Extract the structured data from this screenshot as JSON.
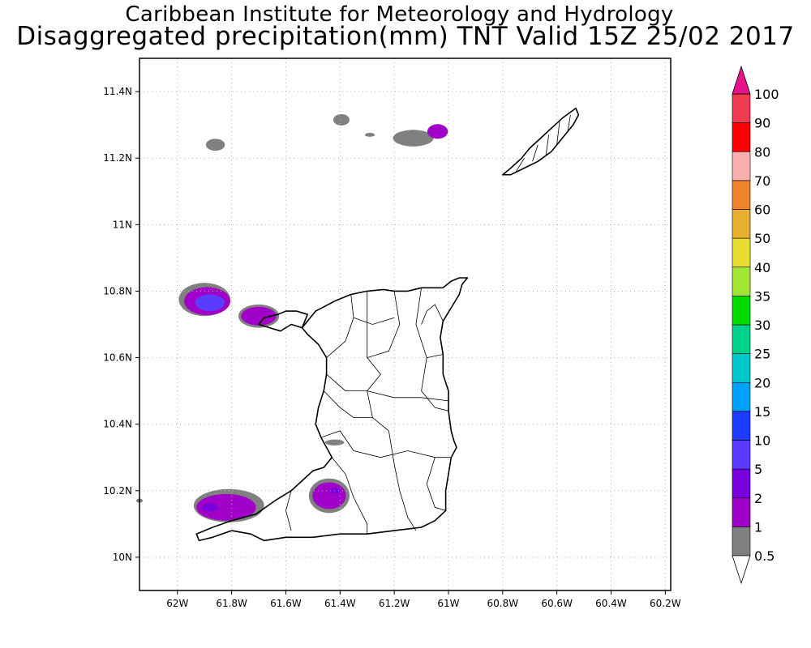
{
  "title": {
    "line1": "Caribbean Institute for Meteorology and Hydrology",
    "line2": "Disaggregated precipitation(mm) TNT Valid 15Z 25/02 2017"
  },
  "axes": {
    "x_ticks": [
      {
        "value": -62.0,
        "label": "62W"
      },
      {
        "value": -61.8,
        "label": "61.8W"
      },
      {
        "value": -61.6,
        "label": "61.6W"
      },
      {
        "value": -61.4,
        "label": "61.4W"
      },
      {
        "value": -61.2,
        "label": "61.2W"
      },
      {
        "value": -61.0,
        "label": "61W"
      },
      {
        "value": -60.8,
        "label": "60.8W"
      },
      {
        "value": -60.6,
        "label": "60.6W"
      },
      {
        "value": -60.4,
        "label": "60.4W"
      },
      {
        "value": -60.2,
        "label": "60.2W"
      }
    ],
    "y_ticks": [
      {
        "value": 10.0,
        "label": "10N"
      },
      {
        "value": 10.2,
        "label": "10.2N"
      },
      {
        "value": 10.4,
        "label": "10.4N"
      },
      {
        "value": 10.6,
        "label": "10.6N"
      },
      {
        "value": 10.8,
        "label": "10.8N"
      },
      {
        "value": 11.0,
        "label": "11N"
      },
      {
        "value": 11.2,
        "label": "11.2N"
      },
      {
        "value": 11.4,
        "label": "11.4N"
      }
    ],
    "lon_range": [
      -62.14,
      -60.18
    ],
    "lat_range": [
      9.9,
      11.5
    ],
    "grid": true
  },
  "colorbar": {
    "orientation": "vertical",
    "levels": [
      {
        "label": "0.5",
        "color": "#ffffff"
      },
      {
        "label": "1",
        "color": "#808080"
      },
      {
        "label": "2",
        "color": "#a000c8"
      },
      {
        "label": "5",
        "color": "#7800dc"
      },
      {
        "label": "10",
        "color": "#5a3cff"
      },
      {
        "label": "15",
        "color": "#1e3cff"
      },
      {
        "label": "20",
        "color": "#00a0ff"
      },
      {
        "label": "25",
        "color": "#00c8c8"
      },
      {
        "label": "30",
        "color": "#00d28c"
      },
      {
        "label": "35",
        "color": "#00dc00"
      },
      {
        "label": "40",
        "color": "#a0e632"
      },
      {
        "label": "50",
        "color": "#e6dc32"
      },
      {
        "label": "60",
        "color": "#e6af2d"
      },
      {
        "label": "70",
        "color": "#f08228"
      },
      {
        "label": "80",
        "color": "#faafaf"
      },
      {
        "label": "90",
        "color": "#fa0000"
      },
      {
        "label": "100",
        "color": "#f03c50"
      }
    ],
    "top_arrow_color": "#e6148c"
  },
  "precip_areas": [
    {
      "lon": -61.86,
      "lat": 11.24,
      "rx": 0.035,
      "ry": 0.018,
      "level": "1"
    },
    {
      "lon": -61.395,
      "lat": 11.315,
      "rx": 0.03,
      "ry": 0.017,
      "level": "1"
    },
    {
      "lon": -61.29,
      "lat": 11.27,
      "rx": 0.018,
      "ry": 0.006,
      "level": "1"
    },
    {
      "lon": -61.13,
      "lat": 11.26,
      "rx": 0.075,
      "ry": 0.025,
      "level": "1"
    },
    {
      "lon": -61.04,
      "lat": 11.28,
      "rx": 0.038,
      "ry": 0.022,
      "level": "2"
    },
    {
      "lon": -61.9,
      "lat": 10.775,
      "rx": 0.095,
      "ry": 0.05,
      "level": "1"
    },
    {
      "lon": -61.89,
      "lat": 10.77,
      "rx": 0.085,
      "ry": 0.042,
      "level": "2"
    },
    {
      "lon": -61.88,
      "lat": 10.765,
      "rx": 0.055,
      "ry": 0.025,
      "level": "10"
    },
    {
      "lon": -61.7,
      "lat": 10.725,
      "rx": 0.075,
      "ry": 0.035,
      "level": "1"
    },
    {
      "lon": -61.7,
      "lat": 10.725,
      "rx": 0.065,
      "ry": 0.028,
      "level": "2"
    },
    {
      "lon": -61.81,
      "lat": 10.155,
      "rx": 0.13,
      "ry": 0.05,
      "level": "1"
    },
    {
      "lon": -61.82,
      "lat": 10.15,
      "rx": 0.11,
      "ry": 0.04,
      "level": "2"
    },
    {
      "lon": -61.88,
      "lat": 10.15,
      "rx": 0.03,
      "ry": 0.012,
      "level": "5"
    },
    {
      "lon": -61.44,
      "lat": 10.185,
      "rx": 0.075,
      "ry": 0.052,
      "level": "1"
    },
    {
      "lon": -61.44,
      "lat": 10.185,
      "rx": 0.062,
      "ry": 0.04,
      "level": "2"
    },
    {
      "lon": -61.42,
      "lat": 10.2,
      "rx": 0.022,
      "ry": 0.008,
      "level": "5"
    },
    {
      "lon": -61.42,
      "lat": 10.345,
      "rx": 0.035,
      "ry": 0.009,
      "level": "1"
    },
    {
      "lon": -62.14,
      "lat": 10.17,
      "rx": 0.012,
      "ry": 0.006,
      "level": "1"
    }
  ],
  "land": {
    "trinidad": [
      [
        -61.54,
        10.69
      ],
      [
        -61.49,
        10.74
      ],
      [
        -61.42,
        10.77
      ],
      [
        -61.36,
        10.79
      ],
      [
        -61.3,
        10.8
      ],
      [
        -61.24,
        10.805
      ],
      [
        -61.2,
        10.8
      ],
      [
        -61.15,
        10.8
      ],
      [
        -61.1,
        10.81
      ],
      [
        -61.02,
        10.81
      ],
      [
        -60.99,
        10.83
      ],
      [
        -60.96,
        10.84
      ],
      [
        -60.93,
        10.84
      ],
      [
        -60.95,
        10.82
      ],
      [
        -60.96,
        10.79
      ],
      [
        -60.99,
        10.75
      ],
      [
        -61.02,
        10.71
      ],
      [
        -61.03,
        10.66
      ],
      [
        -61.02,
        10.61
      ],
      [
        -61.02,
        10.55
      ],
      [
        -61.0,
        10.5
      ],
      [
        -61.0,
        10.44
      ],
      [
        -60.99,
        10.38
      ],
      [
        -60.98,
        10.35
      ],
      [
        -60.97,
        10.33
      ],
      [
        -60.99,
        10.3
      ],
      [
        -61.0,
        10.25
      ],
      [
        -61.01,
        10.2
      ],
      [
        -61.01,
        10.14
      ],
      [
        -61.05,
        10.11
      ],
      [
        -61.1,
        10.09
      ],
      [
        -61.2,
        10.08
      ],
      [
        -61.3,
        10.07
      ],
      [
        -61.4,
        10.07
      ],
      [
        -61.5,
        10.06
      ],
      [
        -61.6,
        10.06
      ],
      [
        -61.68,
        10.05
      ],
      [
        -61.73,
        10.07
      ],
      [
        -61.8,
        10.08
      ],
      [
        -61.87,
        10.06
      ],
      [
        -61.92,
        10.05
      ],
      [
        -61.93,
        10.07
      ],
      [
        -61.87,
        10.09
      ],
      [
        -61.8,
        10.11
      ],
      [
        -61.71,
        10.13
      ],
      [
        -61.64,
        10.17
      ],
      [
        -61.58,
        10.2
      ],
      [
        -61.54,
        10.23
      ],
      [
        -61.5,
        10.26
      ],
      [
        -61.46,
        10.27
      ],
      [
        -61.43,
        10.3
      ],
      [
        -61.45,
        10.33
      ],
      [
        -61.47,
        10.36
      ],
      [
        -61.49,
        10.4
      ],
      [
        -61.48,
        10.45
      ],
      [
        -61.46,
        10.5
      ],
      [
        -61.45,
        10.55
      ],
      [
        -61.45,
        10.6
      ],
      [
        -61.48,
        10.64
      ],
      [
        -61.52,
        10.67
      ]
    ],
    "nw_peninsula": [
      [
        -61.54,
        10.69
      ],
      [
        -61.58,
        10.7
      ],
      [
        -61.62,
        10.68
      ],
      [
        -61.66,
        10.69
      ],
      [
        -61.7,
        10.7
      ],
      [
        -61.68,
        10.72
      ],
      [
        -61.63,
        10.73
      ],
      [
        -61.6,
        10.74
      ],
      [
        -61.56,
        10.74
      ],
      [
        -61.52,
        10.73
      ]
    ],
    "tobago": [
      [
        -60.8,
        11.15
      ],
      [
        -60.77,
        11.17
      ],
      [
        -60.73,
        11.2
      ],
      [
        -60.7,
        11.23
      ],
      [
        -60.66,
        11.26
      ],
      [
        -60.62,
        11.29
      ],
      [
        -60.58,
        11.32
      ],
      [
        -60.53,
        11.35
      ],
      [
        -60.52,
        11.33
      ],
      [
        -60.54,
        11.3
      ],
      [
        -60.58,
        11.26
      ],
      [
        -60.62,
        11.22
      ],
      [
        -60.67,
        11.19
      ],
      [
        -60.72,
        11.17
      ],
      [
        -60.77,
        11.15
      ]
    ],
    "boundaries": [
      [
        [
          -61.3,
          10.8
        ],
        [
          -61.3,
          10.6
        ],
        [
          -61.25,
          10.55
        ],
        [
          -61.3,
          10.5
        ],
        [
          -61.28,
          10.42
        ],
        [
          -61.22,
          10.38
        ]
      ],
      [
        [
          -61.1,
          10.81
        ],
        [
          -61.12,
          10.7
        ],
        [
          -61.08,
          10.6
        ],
        [
          -61.1,
          10.5
        ],
        [
          -61.05,
          10.45
        ],
        [
          -61.0,
          10.44
        ]
      ],
      [
        [
          -61.45,
          10.55
        ],
        [
          -61.38,
          10.5
        ],
        [
          -61.3,
          10.5
        ],
        [
          -61.2,
          10.48
        ],
        [
          -61.1,
          10.48
        ],
        [
          -61.0,
          10.47
        ]
      ],
      [
        [
          -61.47,
          10.36
        ],
        [
          -61.4,
          10.38
        ],
        [
          -61.35,
          10.32
        ],
        [
          -61.25,
          10.3
        ],
        [
          -61.15,
          10.32
        ],
        [
          -61.05,
          10.3
        ],
        [
          -60.99,
          10.3
        ]
      ],
      [
        [
          -61.43,
          10.3
        ],
        [
          -61.38,
          10.25
        ],
        [
          -61.35,
          10.18
        ],
        [
          -61.3,
          10.1
        ],
        [
          -61.3,
          10.07
        ]
      ],
      [
        [
          -61.22,
          10.38
        ],
        [
          -61.2,
          10.28
        ],
        [
          -61.18,
          10.2
        ],
        [
          -61.15,
          10.12
        ],
        [
          -61.12,
          10.08
        ]
      ],
      [
        [
          -61.58,
          10.2
        ],
        [
          -61.6,
          10.14
        ],
        [
          -61.58,
          10.08
        ]
      ],
      [
        [
          -61.45,
          10.6
        ],
        [
          -61.38,
          10.65
        ],
        [
          -61.35,
          10.72
        ],
        [
          -61.36,
          10.79
        ]
      ],
      [
        [
          -61.2,
          10.8
        ],
        [
          -61.18,
          10.7
        ],
        [
          -61.22,
          10.62
        ],
        [
          -61.3,
          10.6
        ]
      ],
      [
        [
          -61.02,
          10.71
        ],
        [
          -61.05,
          10.76
        ],
        [
          -61.08,
          10.74
        ],
        [
          -61.1,
          10.7
        ]
      ],
      [
        [
          -61.08,
          10.6
        ],
        [
          -61.02,
          10.61
        ]
      ],
      [
        [
          -61.35,
          10.72
        ],
        [
          -61.28,
          10.7
        ],
        [
          -61.2,
          10.72
        ]
      ],
      [
        [
          -61.46,
          10.5
        ],
        [
          -61.4,
          10.45
        ],
        [
          -61.35,
          10.42
        ],
        [
          -61.28,
          10.42
        ]
      ],
      [
        [
          -61.05,
          10.3
        ],
        [
          -61.08,
          10.22
        ],
        [
          -61.05,
          10.15
        ],
        [
          -61.01,
          10.14
        ]
      ]
    ],
    "tobago_boundaries": [
      [
        [
          -60.75,
          11.16
        ],
        [
          -60.72,
          11.2
        ]
      ],
      [
        [
          -60.69,
          11.19
        ],
        [
          -60.67,
          11.24
        ]
      ],
      [
        [
          -60.64,
          11.21
        ],
        [
          -60.63,
          11.27
        ]
      ],
      [
        [
          -60.6,
          11.24
        ],
        [
          -60.59,
          11.31
        ]
      ],
      [
        [
          -60.56,
          11.28
        ],
        [
          -60.55,
          11.33
        ]
      ]
    ]
  }
}
